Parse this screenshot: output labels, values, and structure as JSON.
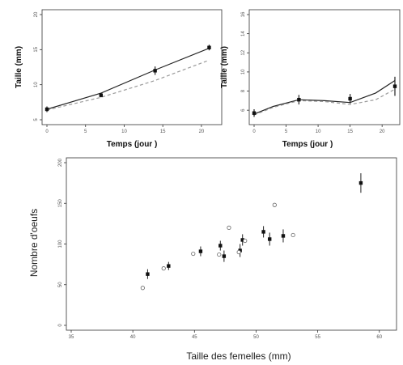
{
  "chart_data": [
    {
      "id": "growth-left",
      "type": "line",
      "xlabel": "Temps (jour )",
      "ylabel": "Taille (mm)",
      "xlim": [
        0,
        22
      ],
      "ylim": [
        5,
        20
      ],
      "x_ticks": [
        "0",
        "5",
        "10",
        "15",
        "20"
      ],
      "y_ticks": [
        "5",
        "10",
        "15",
        "20"
      ],
      "series": [
        {
          "style": "solid",
          "x": [
            0,
            7,
            14,
            21
          ],
          "y": [
            6.5,
            8.8,
            12.1,
            15.2
          ]
        },
        {
          "style": "dashed",
          "x": [
            0,
            7,
            14,
            21
          ],
          "y": [
            6.4,
            8.2,
            10.6,
            13.5
          ]
        }
      ],
      "points": [
        {
          "x": 0,
          "y": 6.5,
          "err": 0.4
        },
        {
          "x": 7,
          "y": 8.5,
          "err": 0.3
        },
        {
          "x": 14,
          "y": 12.0,
          "err": 0.6
        },
        {
          "x": 21,
          "y": 15.3,
          "err": 0.4
        }
      ]
    },
    {
      "id": "growth-right",
      "type": "line",
      "xlabel": "Temps (jour )",
      "ylabel": "Taille (mm)",
      "xlim": [
        0,
        22
      ],
      "ylim": [
        5,
        16
      ],
      "x_ticks": [
        "0",
        "5",
        "10",
        "15",
        "20"
      ],
      "y_ticks": [
        "6",
        "8",
        "10",
        "12",
        "14",
        "16"
      ],
      "series": [
        {
          "style": "solid",
          "x": [
            0,
            3,
            7,
            11,
            15,
            19,
            22
          ],
          "y": [
            5.6,
            6.4,
            7.1,
            7.0,
            6.8,
            7.8,
            9.1
          ]
        },
        {
          "style": "dashed",
          "x": [
            0,
            3,
            7,
            11,
            15,
            19,
            22
          ],
          "y": [
            5.5,
            6.3,
            7.0,
            6.9,
            6.6,
            7.1,
            8.2
          ]
        }
      ],
      "points": [
        {
          "x": 0,
          "y": 5.7,
          "err": 0.4
        },
        {
          "x": 7,
          "y": 7.1,
          "err": 0.5
        },
        {
          "x": 15,
          "y": 7.2,
          "err": 0.5
        },
        {
          "x": 22,
          "y": 8.5,
          "err": 1.0
        }
      ]
    },
    {
      "id": "eggs-scatter",
      "type": "scatter",
      "xlabel": "Taille des femelles (mm)",
      "ylabel": "Nombre d'oeufs",
      "xlim": [
        35,
        61
      ],
      "ylim": [
        0,
        200
      ],
      "x_ticks": [
        "35",
        "40",
        "45",
        "50",
        "55",
        "60"
      ],
      "y_ticks": [
        "0",
        "50",
        "100",
        "150",
        "200"
      ],
      "open_points": [
        {
          "x": 40.8,
          "y": 46
        },
        {
          "x": 42.5,
          "y": 70
        },
        {
          "x": 44.9,
          "y": 88
        },
        {
          "x": 47.0,
          "y": 87
        },
        {
          "x": 47.8,
          "y": 120
        },
        {
          "x": 48.6,
          "y": 90
        },
        {
          "x": 49.1,
          "y": 104
        },
        {
          "x": 51.5,
          "y": 148
        },
        {
          "x": 53.0,
          "y": 111
        }
      ],
      "filled_points": [
        {
          "x": 41.2,
          "y": 63,
          "err": 6
        },
        {
          "x": 42.9,
          "y": 73,
          "err": 5
        },
        {
          "x": 45.5,
          "y": 91,
          "err": 6
        },
        {
          "x": 47.1,
          "y": 98,
          "err": 6
        },
        {
          "x": 47.4,
          "y": 85,
          "err": 7
        },
        {
          "x": 48.7,
          "y": 92,
          "err": 8
        },
        {
          "x": 48.9,
          "y": 105,
          "err": 7
        },
        {
          "x": 50.6,
          "y": 115,
          "err": 7
        },
        {
          "x": 51.1,
          "y": 106,
          "err": 8
        },
        {
          "x": 52.2,
          "y": 110,
          "err": 8
        },
        {
          "x": 58.5,
          "y": 175,
          "err": 12
        }
      ]
    }
  ]
}
